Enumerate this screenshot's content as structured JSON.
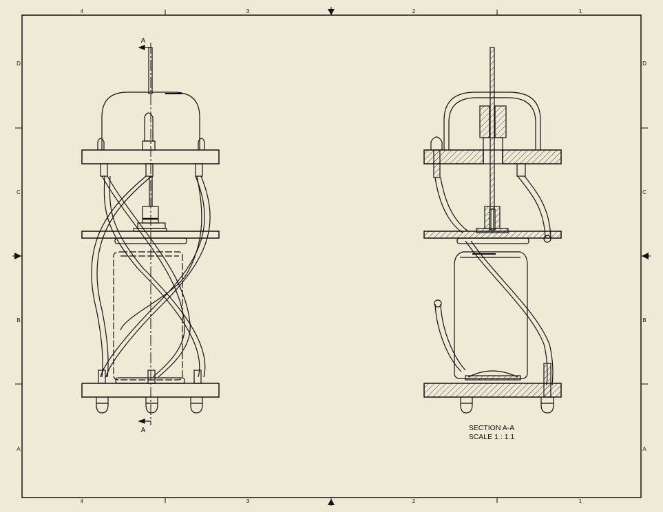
{
  "colors": {
    "paper": "#ecebd6",
    "ink": "#111111"
  },
  "border": {
    "top_zones": [
      "4",
      "3",
      "2",
      "1"
    ],
    "bottom_zones": [
      "4",
      "3",
      "2",
      "1"
    ],
    "left_zones": [
      "D",
      "C",
      "B",
      "A"
    ],
    "right_zones": [
      "D",
      "C",
      "B",
      "A"
    ]
  },
  "front_view": {
    "cut_label_top": "A",
    "cut_label_bottom": "A"
  },
  "section_view": {
    "title": "SECTION A-A",
    "scale": "SCALE 1 : 1.1"
  }
}
